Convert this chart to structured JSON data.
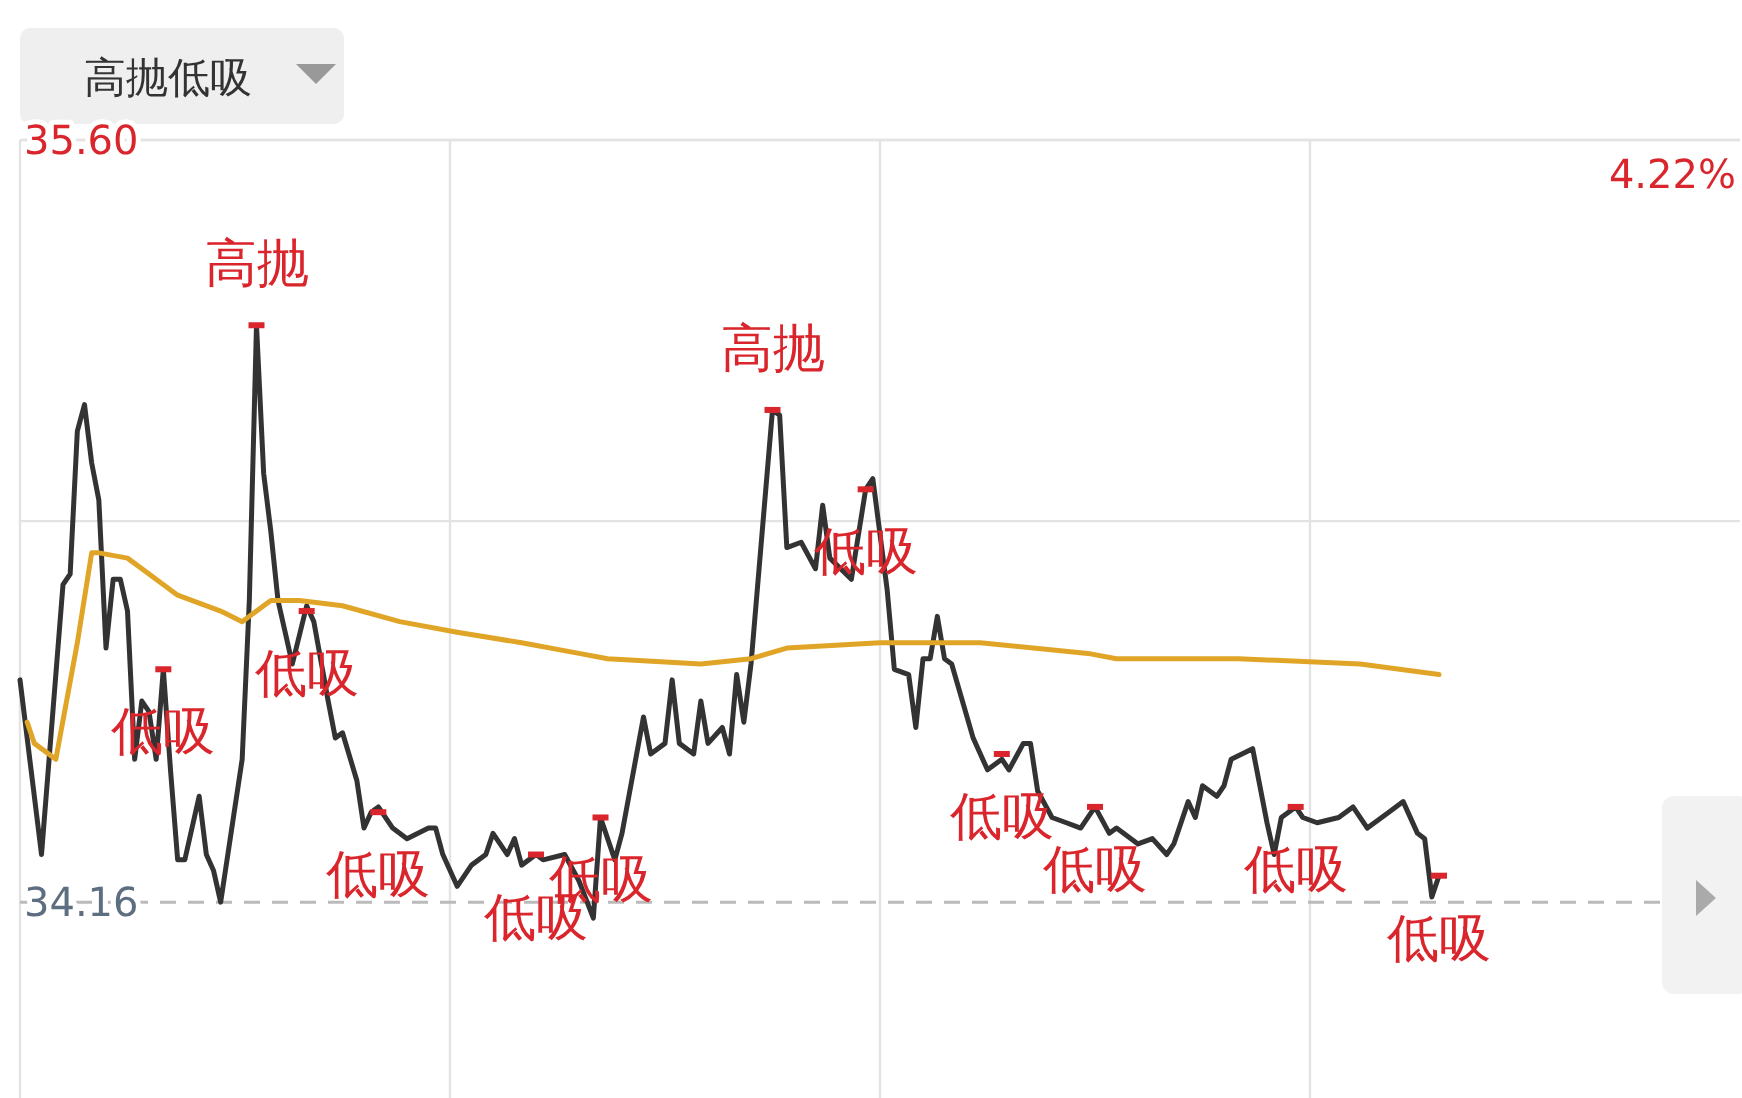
{
  "chart_data": {
    "type": "line",
    "title": "高抛低吸",
    "categories": [
      null,
      null,
      null,
      null,
      null,
      null,
      null,
      null,
      null,
      null,
      null,
      null,
      null,
      null,
      null,
      null,
      null,
      null,
      null,
      null,
      null,
      null,
      null,
      null,
      null,
      null,
      null,
      null,
      null,
      null,
      null,
      null,
      null,
      null,
      null,
      null,
      null,
      null,
      null,
      null,
      null,
      null,
      null,
      null,
      null,
      null,
      null,
      null,
      null,
      null,
      null,
      null,
      null,
      null,
      null,
      null,
      null,
      null,
      null,
      null,
      null,
      null,
      null,
      null,
      null,
      null,
      null,
      null,
      null,
      null,
      null,
      null,
      null,
      null,
      null,
      null,
      null,
      null,
      null,
      null,
      null,
      null,
      null,
      null,
      null,
      null,
      null,
      null,
      null,
      null,
      null,
      null,
      null,
      null,
      null,
      null,
      null,
      null,
      null,
      null,
      null,
      null,
      null,
      null,
      null,
      null,
      null,
      null,
      null,
      null,
      null,
      null,
      null,
      null,
      null,
      null,
      null,
      null,
      null,
      null,
      null,
      null,
      null,
      null,
      null,
      null,
      null,
      null,
      null,
      null,
      null,
      null,
      null,
      null,
      null,
      null,
      null,
      null,
      null,
      null,
      null,
      null,
      null,
      null,
      null,
      null,
      null,
      null,
      null,
      null,
      null,
      null,
      null,
      null,
      null,
      null,
      null,
      null,
      null,
      null,
      null,
      null,
      null,
      null,
      null,
      null,
      null,
      null,
      null,
      null,
      null,
      null,
      null,
      null,
      null,
      null,
      null,
      null,
      null,
      null,
      null,
      null,
      null,
      null,
      null,
      null,
      null,
      null,
      null,
      null,
      null,
      null,
      null,
      null,
      null,
      null,
      null,
      null,
      null,
      null,
      null,
      null,
      null,
      null,
      null,
      null,
      null,
      null,
      null,
      null,
      null,
      null,
      null,
      null,
      null,
      null,
      null,
      null,
      null,
      null,
      null,
      null,
      null,
      null,
      null,
      null,
      null,
      null,
      null,
      null,
      null,
      null,
      null,
      null,
      null,
      null,
      null,
      null,
      null,
      null,
      null
    ],
    "series": [
      {
        "color": "#333333",
        "values": [
          34.58,
          null,
          null,
          34.25,
          null,
          null,
          34.76,
          34.78,
          35.05,
          35.1,
          34.99,
          34.92,
          34.64,
          34.77,
          34.77,
          34.71,
          34.43,
          34.54,
          34.52,
          34.43,
          34.6,
          34.41,
          34.24,
          34.24,
          null,
          34.36,
          34.25,
          34.22,
          34.16,
          null,
          null,
          34.43,
          34.73,
          35.25,
          34.97,
          34.86,
          34.73,
          null,
          34.61,
          null,
          34.72,
          34.69,
          null,
          34.54,
          34.47,
          34.48,
          null,
          34.39,
          34.3,
          34.33,
          34.34,
          null,
          34.3,
          null,
          34.28,
          null,
          null,
          34.3,
          34.3,
          34.25,
          null,
          34.19,
          null,
          34.23,
          null,
          34.25,
          34.29,
          null,
          34.25,
          34.28,
          34.23,
          null,
          34.25,
          34.24,
          null,
          null,
          34.25,
          null,
          34.2,
          null,
          34.13,
          34.32,
          null,
          34.24,
          34.29,
          null,
          null,
          34.51,
          34.44,
          null,
          34.46,
          34.58,
          34.46,
          null,
          34.44,
          34.54,
          34.46,
          null,
          34.49,
          34.44,
          34.59,
          34.5,
          34.61,
          null,
          null,
          35.09,
          35.08,
          34.83,
          null,
          34.84,
          null,
          34.79,
          34.91,
          34.81,
          null,
          null,
          34.77,
          null,
          34.94,
          34.96,
          null,
          34.75,
          34.6,
          null,
          34.59,
          34.49,
          34.62,
          34.62,
          34.7,
          34.62,
          34.61,
          null,
          null,
          34.47,
          null,
          34.41,
          null,
          34.43,
          34.41,
          null,
          34.46,
          34.46,
          34.37,
          null,
          34.32,
          null,
          34.31,
          null,
          34.3,
          null,
          34.34,
          null,
          34.29,
          34.3,
          null,
          null,
          34.27,
          null,
          34.28,
          null,
          34.25,
          34.27,
          null,
          34.35,
          34.32,
          34.38,
          null,
          34.36,
          34.38,
          34.43,
          null,
          null,
          34.45,
          null,
          34.31,
          34.25,
          34.32,
          null,
          34.34,
          34.32,
          null,
          34.31,
          null,
          null,
          34.32,
          null,
          34.34,
          null,
          34.3,
          null,
          34.32,
          34.33,
          null,
          34.35,
          null,
          34.29,
          34.28,
          34.17,
          34.21,
          null,
          null,
          null,
          null,
          null,
          null,
          null,
          null,
          null,
          null,
          null,
          null,
          null,
          null,
          null,
          null,
          null,
          null,
          null,
          null,
          null,
          null,
          null,
          null,
          null,
          null,
          null,
          null,
          null,
          null,
          null,
          null,
          null,
          null,
          null,
          null,
          null,
          null,
          null,
          null,
          null,
          null
        ]
      },
      {
        "color": "#e0a526",
        "values": [
          null,
          34.5,
          34.46,
          null,
          null,
          34.43,
          null,
          null,
          34.65,
          null,
          34.82,
          34.82,
          null,
          null,
          null,
          34.81,
          null,
          null,
          34.78,
          null,
          null,
          null,
          34.74,
          null,
          null,
          null,
          null,
          null,
          34.71,
          null,
          null,
          34.69,
          null,
          null,
          null,
          34.73,
          null,
          null,
          null,
          34.73,
          null,
          null,
          null,
          null,
          null,
          34.72,
          null,
          null,
          null,
          null,
          null,
          null,
          null,
          34.69,
          null,
          null,
          null,
          null,
          null,
          null,
          null,
          34.67,
          null,
          null,
          null,
          null,
          null,
          null,
          null,
          null,
          34.65,
          null,
          null,
          null,
          null,
          null,
          null,
          null,
          34.63,
          null,
          null,
          null,
          34.62,
          null,
          null,
          null,
          null,
          null,
          null,
          null,
          null,
          null,
          null,
          null,
          null,
          34.61,
          null,
          null,
          null,
          null,
          null,
          null,
          34.62,
          null,
          null,
          null,
          null,
          34.64,
          null,
          null,
          null,
          null,
          null,
          null,
          null,
          null,
          null,
          null,
          null,
          null,
          34.65,
          null,
          null,
          null,
          null,
          null,
          null,
          null,
          null,
          null,
          null,
          null,
          null,
          null,
          34.65,
          null,
          null,
          null,
          null,
          null,
          null,
          null,
          null,
          null,
          null,
          null,
          null,
          null,
          null,
          34.63,
          null,
          null,
          null,
          34.62,
          null,
          null,
          null,
          null,
          null,
          null,
          null,
          null,
          null,
          null,
          null,
          null,
          null,
          null,
          null,
          null,
          34.62,
          null,
          null,
          null,
          null,
          null,
          null,
          null,
          null,
          null,
          null,
          null,
          null,
          null,
          null,
          null,
          null,
          34.61,
          null,
          null,
          null,
          null,
          null,
          null,
          null,
          null,
          null,
          null,
          34.59,
          null,
          null,
          null,
          null,
          null,
          null,
          null,
          null,
          null,
          null,
          null,
          null,
          null,
          null,
          null,
          null,
          null,
          null,
          null,
          null,
          null,
          null,
          null,
          null,
          null,
          null,
          null,
          null,
          null,
          null,
          null,
          null,
          null,
          null,
          null,
          null,
          null,
          null,
          null,
          null,
          null,
          null
        ]
      },
      {
        "type": "scatter",
        "color": "#d9252b",
        "values": [
          null,
          null,
          null,
          null,
          null,
          null,
          null,
          null,
          null,
          null,
          null,
          null,
          null,
          null,
          null,
          null,
          null,
          null,
          null,
          null,
          34.6,
          null,
          null,
          null,
          null,
          null,
          null,
          null,
          null,
          null,
          null,
          null,
          null,
          35.25,
          null,
          null,
          null,
          null,
          null,
          null,
          34.71,
          null,
          null,
          null,
          null,
          null,
          null,
          null,
          null,
          null,
          34.33,
          null,
          null,
          null,
          null,
          null,
          null,
          null,
          null,
          null,
          null,
          null,
          null,
          null,
          null,
          null,
          null,
          null,
          null,
          null,
          null,
          null,
          34.25,
          null,
          null,
          null,
          null,
          null,
          null,
          null,
          null,
          34.32,
          null,
          null,
          null,
          null,
          null,
          null,
          null,
          null,
          null,
          null,
          null,
          null,
          null,
          null,
          null,
          null,
          null,
          null,
          null,
          null,
          null,
          null,
          null,
          35.09,
          null,
          null,
          null,
          null,
          null,
          null,
          null,
          null,
          null,
          null,
          null,
          null,
          34.94,
          null,
          null,
          null,
          null,
          null,
          null,
          null,
          null,
          null,
          null,
          null,
          null,
          null,
          null,
          null,
          null,
          null,
          null,
          34.44,
          null,
          null,
          null,
          null,
          null,
          null,
          null,
          null,
          null,
          null,
          null,
          null,
          34.34,
          null,
          null,
          null,
          null,
          null,
          null,
          null,
          null,
          null,
          null,
          null,
          null,
          null,
          null,
          null,
          null,
          null,
          null,
          null,
          null,
          null,
          null,
          null,
          null,
          null,
          null,
          null,
          34.34,
          null,
          null,
          null,
          null,
          null,
          null,
          null,
          null,
          null,
          null,
          null,
          null,
          null,
          null,
          null,
          null,
          null,
          null,
          null,
          34.21,
          null,
          null,
          null,
          null,
          null,
          null,
          null,
          null,
          null,
          null,
          null,
          null,
          null,
          null,
          null,
          null,
          null,
          null,
          null,
          null,
          null,
          null,
          null,
          null,
          null,
          null,
          null,
          null,
          null,
          null,
          null,
          null,
          null,
          null,
          null,
          null,
          null,
          null,
          null,
          null,
          null,
          null
        ],
        "value_labels": [
          null,
          null,
          null,
          null,
          null,
          null,
          null,
          null,
          null,
          null,
          null,
          null,
          null,
          null,
          null,
          null,
          null,
          null,
          null,
          null,
          "低吸",
          null,
          null,
          null,
          null,
          null,
          null,
          null,
          null,
          null,
          null,
          null,
          null,
          "高抛",
          null,
          null,
          null,
          null,
          null,
          null,
          "低吸",
          null,
          null,
          null,
          null,
          null,
          null,
          null,
          null,
          null,
          "低吸",
          null,
          null,
          null,
          null,
          null,
          null,
          null,
          null,
          null,
          null,
          null,
          null,
          null,
          null,
          null,
          null,
          null,
          null,
          null,
          null,
          null,
          "低吸",
          null,
          null,
          null,
          null,
          null,
          null,
          null,
          null,
          "低吸",
          null,
          null,
          null,
          null,
          null,
          null,
          null,
          null,
          null,
          null,
          null,
          null,
          null,
          null,
          null,
          null,
          null,
          null,
          null,
          null,
          null,
          null,
          null,
          "高抛",
          null,
          null,
          null,
          null,
          null,
          null,
          null,
          null,
          null,
          null,
          null,
          null,
          "低吸",
          null,
          null,
          null,
          null,
          null,
          null,
          null,
          null,
          null,
          null,
          null,
          null,
          null,
          null,
          null,
          null,
          null,
          null,
          "低吸",
          null,
          null,
          null,
          null,
          null,
          null,
          null,
          null,
          null,
          null,
          null,
          null,
          "低吸",
          null,
          null,
          null,
          null,
          null,
          null,
          null,
          null,
          null,
          null,
          null,
          null,
          null,
          null,
          null,
          null,
          null,
          null,
          null,
          null,
          null,
          null,
          null,
          null,
          null,
          null,
          null,
          "低吸",
          null,
          null,
          null,
          null,
          null,
          null,
          null,
          null,
          null,
          null,
          null,
          null,
          null,
          null,
          null,
          null,
          null,
          null,
          null,
          "低吸",
          null,
          null,
          null,
          null,
          null,
          null,
          null,
          null,
          null,
          null,
          null,
          null,
          null,
          null,
          null,
          null,
          null,
          null,
          null,
          null,
          null,
          null,
          null,
          null,
          null,
          null,
          null,
          null,
          null,
          null,
          null,
          null,
          null,
          null,
          null,
          null,
          null,
          null,
          null,
          null,
          null,
          null
        ]
      }
    ],
    "ylim": [
      33.79,
      35.6
    ],
    "yticks": [
      {
        "value": 35.6,
        "label": "35.60"
      },
      {
        "value": 34.88,
        "label": null
      },
      {
        "value": 34.16,
        "label": "34.16"
      }
    ],
    "tick_labels": "y",
    "grid": true,
    "line_style": "solid",
    "ref_lines": [
      {
        "axis": "y",
        "value": 34.16,
        "color": "#bbbbbb",
        "line_style": "dashed"
      }
    ],
    "annotations": [
      "4.22%"
    ]
  }
}
